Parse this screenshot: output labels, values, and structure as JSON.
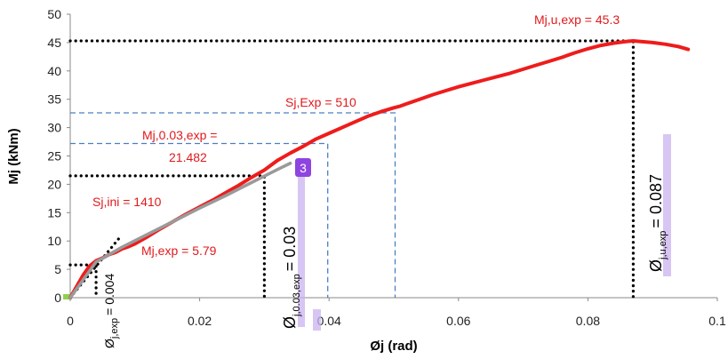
{
  "chart_data": {
    "type": "line",
    "xlabel": "Øj (rad)",
    "ylabel": "Mj (kNm)",
    "xlim": [
      0,
      0.1
    ],
    "ylim": [
      0,
      50
    ],
    "x_ticks": [
      {
        "value": 0,
        "label": "0"
      },
      {
        "value": 0.02,
        "label": "0.02"
      },
      {
        "value": 0.04,
        "label": "0.04"
      },
      {
        "value": 0.06,
        "label": "0.06"
      },
      {
        "value": 0.08,
        "label": "0.08"
      },
      {
        "value": 0.1,
        "label": "0.1"
      }
    ],
    "y_ticks": [
      {
        "value": 0,
        "label": "0"
      },
      {
        "value": 5,
        "label": "5"
      },
      {
        "value": 10,
        "label": "10"
      },
      {
        "value": 15,
        "label": "15"
      },
      {
        "value": 20,
        "label": "20"
      },
      {
        "value": 25,
        "label": "25"
      },
      {
        "value": 30,
        "label": "30"
      },
      {
        "value": 35,
        "label": "35"
      },
      {
        "value": 40,
        "label": "40"
      },
      {
        "value": 45,
        "label": "45"
      },
      {
        "value": 50,
        "label": "50"
      }
    ],
    "series": [
      {
        "color": "#ee1c1c",
        "x": [
          0,
          0.001,
          0.002,
          0.003,
          0.004,
          0.005,
          0.006,
          0.007,
          0.008,
          0.009,
          0.01,
          0.012,
          0.014,
          0.016,
          0.018,
          0.02,
          0.022,
          0.024,
          0.026,
          0.028,
          0.03,
          0.032,
          0.034,
          0.036,
          0.038,
          0.04,
          0.042,
          0.044,
          0.046,
          0.048,
          0.05,
          0.051,
          0.052,
          0.054,
          0.056,
          0.058,
          0.06,
          0.062,
          0.064,
          0.066,
          0.068,
          0.07,
          0.072,
          0.074,
          0.076,
          0.078,
          0.08,
          0.082,
          0.084,
          0.086,
          0.087,
          0.088,
          0.09,
          0.092,
          0.094,
          0.0955
        ],
        "y": [
          0,
          2.0,
          4.0,
          5.6,
          6.5,
          7.0,
          7.6,
          8.0,
          8.6,
          9.0,
          9.5,
          10.8,
          12.2,
          13.5,
          14.8,
          16.0,
          17.2,
          18.5,
          19.8,
          21.2,
          22.5,
          24.2,
          25.5,
          26.7,
          28.0,
          29.0,
          30.0,
          31.0,
          32.0,
          32.8,
          33.5,
          33.8,
          34.2,
          35.0,
          35.8,
          36.5,
          37.2,
          37.8,
          38.4,
          39.0,
          39.6,
          40.3,
          41.0,
          41.7,
          42.4,
          43.2,
          43.9,
          44.5,
          44.9,
          45.2,
          45.3,
          45.2,
          45.0,
          44.7,
          44.3,
          43.8
        ]
      },
      {
        "color": "#9a9a9a",
        "x": [
          0,
          0.004,
          0.008,
          0.012,
          0.016,
          0.02,
          0.024,
          0.028,
          0.032,
          0.034
        ],
        "y": [
          0,
          6.3,
          8.9,
          11.2,
          13.5,
          15.8,
          18.0,
          20.3,
          22.6,
          23.7
        ]
      }
    ],
    "reference_lines": [
      {
        "style": "black-dotted",
        "points": [
          [
            0,
            45.3
          ],
          [
            0.087,
            45.3
          ],
          [
            0.087,
            0
          ]
        ]
      },
      {
        "style": "black-dotted",
        "points": [
          [
            0,
            21.482
          ],
          [
            0.03,
            21.482
          ],
          [
            0.03,
            0
          ]
        ]
      },
      {
        "style": "black-dotted",
        "points": [
          [
            0,
            5.79
          ],
          [
            0.004,
            5.79
          ],
          [
            0.004,
            0
          ]
        ]
      },
      {
        "style": "black-dotted",
        "points": [
          [
            0,
            0
          ],
          [
            0.0075,
            10.4
          ]
        ]
      },
      {
        "style": "blue-dashed",
        "points": [
          [
            0,
            27.2
          ],
          [
            0.0398,
            27.2
          ],
          [
            0.0398,
            0
          ]
        ]
      },
      {
        "style": "blue-dashed",
        "points": [
          [
            0,
            32.6
          ],
          [
            0.0502,
            32.6
          ],
          [
            0.0502,
            0
          ]
        ]
      }
    ],
    "annotations": {
      "mj_u_exp": "Mj,u,exp = 45.3",
      "sj_exp": "Sj,Exp = 510",
      "mj_003_line1": "Mj,0.03,exp =",
      "mj_003_line2": "21.482",
      "sj_ini": "Sj,ini = 1410",
      "mj_exp": "Mj,exp = 5.79",
      "phi_j_exp_sub": "j,exp",
      "phi_j_exp_value": "= 0.004",
      "phi_003_sub": "j,0.03,exp",
      "phi_003_value": "= 0.03",
      "phi_u_sub": "j,u,exp",
      "phi_u_value": "= 0.087",
      "phi_symbol": "Ø",
      "marker_badge": "3"
    }
  }
}
